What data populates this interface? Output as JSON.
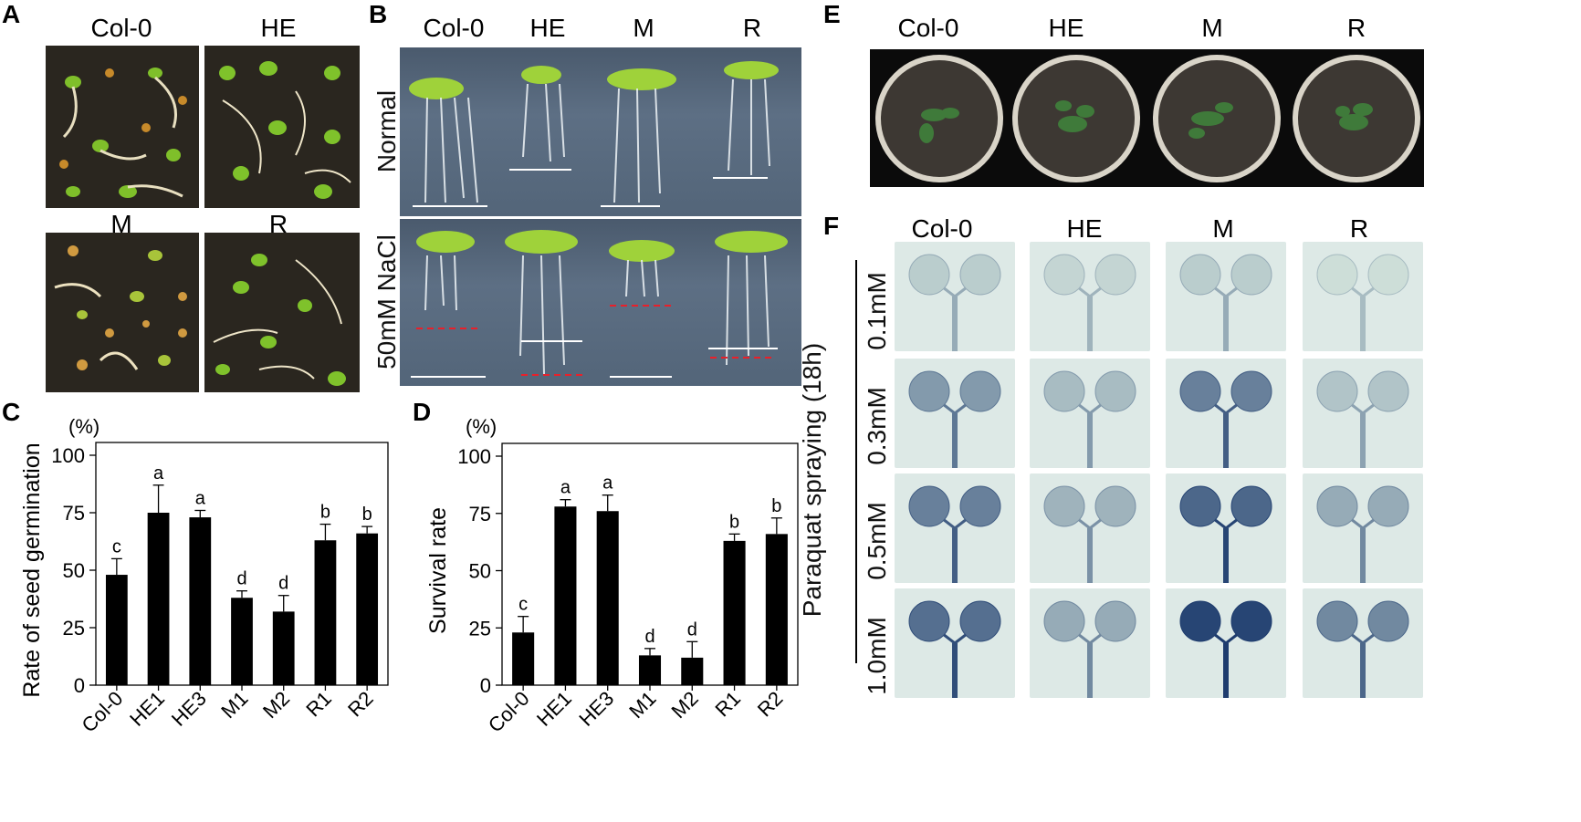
{
  "panels": {
    "A": {
      "letter": "A",
      "labels_top": [
        "Col-0",
        "HE"
      ],
      "labels_bottom": [
        "M",
        "R"
      ]
    },
    "B": {
      "letter": "B",
      "columns": [
        "Col-0",
        "HE",
        "M",
        "R"
      ],
      "rows": [
        "Normal",
        "50mM NaCl"
      ]
    },
    "C": {
      "letter": "C",
      "unit": "(%)"
    },
    "D": {
      "letter": "D",
      "unit": "(%)"
    },
    "E": {
      "letter": "E",
      "columns": [
        "Col-0",
        "HE",
        "M",
        "R"
      ]
    },
    "F": {
      "letter": "F",
      "columns": [
        "Col-0",
        "HE",
        "M",
        "R"
      ],
      "rows": [
        "0.1mM",
        "0.3mM",
        "0.5mM",
        "1.0mM"
      ],
      "side_label": "Paraquat spraying (18h)",
      "stain_levels": [
        [
          0.15,
          0.1,
          0.15,
          0.05
        ],
        [
          0.45,
          0.25,
          0.6,
          0.2
        ],
        [
          0.6,
          0.3,
          0.75,
          0.35
        ],
        [
          0.7,
          0.35,
          0.95,
          0.55
        ]
      ]
    }
  },
  "chart_data": [
    {
      "type": "bar",
      "panel": "C",
      "categories": [
        "Col-0",
        "HE1",
        "HE3",
        "M1",
        "M2",
        "R1",
        "R2"
      ],
      "values": [
        48,
        75,
        73,
        38,
        32,
        63,
        66
      ],
      "errors": [
        7,
        12,
        3,
        3,
        7,
        7,
        3
      ],
      "letters": [
        "c",
        "a",
        "a",
        "d",
        "d",
        "b",
        "b"
      ],
      "ylabel": "Rate of seed germination",
      "yticks": [
        0,
        25,
        50,
        75,
        100
      ],
      "ylim": [
        0,
        100
      ],
      "bar_color": "#000000"
    },
    {
      "type": "bar",
      "panel": "D",
      "categories": [
        "Col-0",
        "HE1",
        "HE3",
        "M1",
        "M2",
        "R1",
        "R2"
      ],
      "values": [
        23,
        78,
        76,
        13,
        12,
        63,
        66
      ],
      "errors": [
        7,
        3,
        7,
        3,
        7,
        3,
        7
      ],
      "letters": [
        "c",
        "a",
        "a",
        "d",
        "d",
        "b",
        "b"
      ],
      "ylabel": "Survival rate",
      "yticks": [
        0,
        25,
        50,
        75,
        100
      ],
      "ylim": [
        0,
        100
      ],
      "bar_color": "#000000"
    }
  ]
}
